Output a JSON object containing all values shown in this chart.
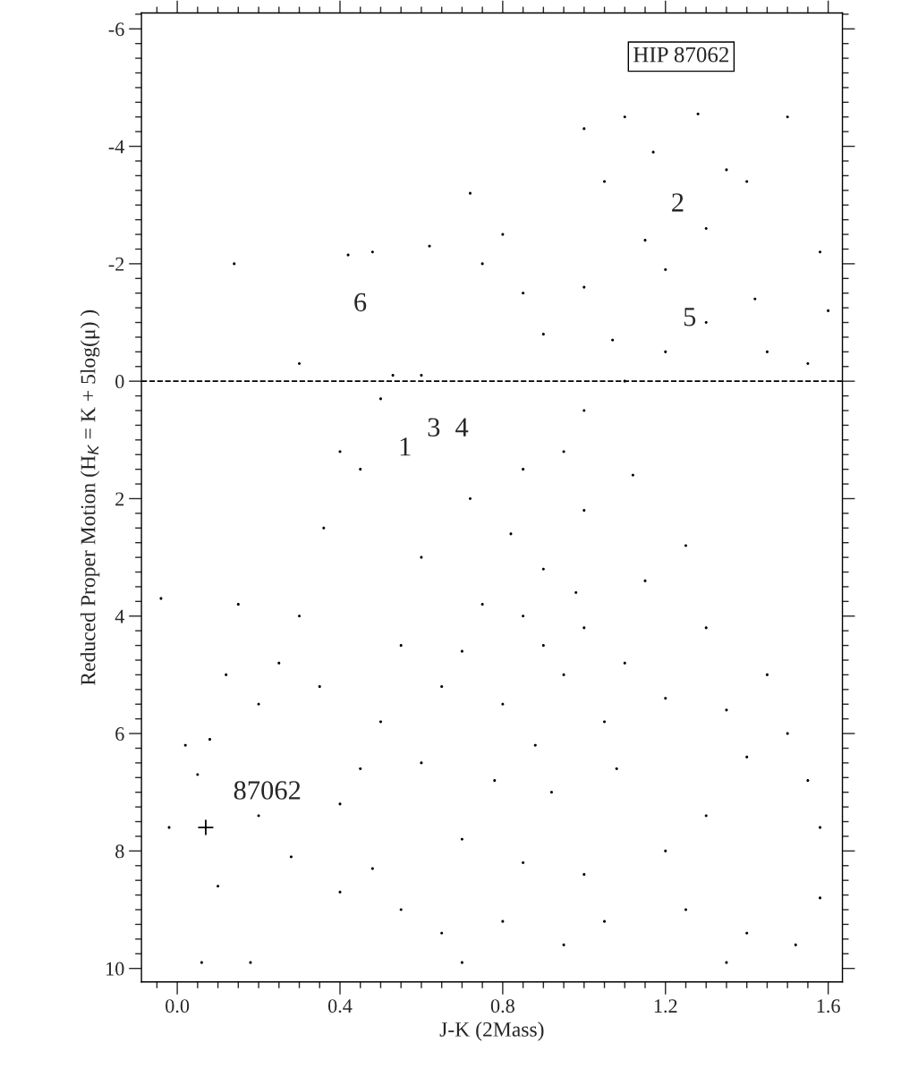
{
  "chart_data": {
    "type": "scatter",
    "xlabel": "J-K (2Mass)",
    "ylabel": "Reduced Proper Motion (H$_{K}$ = K + 5log(μ) )",
    "xlim": [
      -0.088,
      1.635
    ],
    "ylim": [
      10.23,
      -6.27
    ],
    "xticks": [
      {
        "value": 0,
        "label": "0.0"
      },
      0.4,
      0.8,
      1.2,
      1.6
    ],
    "yticks": [
      -6,
      -4,
      -2,
      0,
      2,
      4,
      6,
      8,
      10
    ],
    "grid": false,
    "legend": false,
    "ref_lines": [
      {
        "axis": "y",
        "value": 0,
        "color": "#000000",
        "line_style": "dashed"
      }
    ],
    "annotations": [
      "HIP 87062",
      "2",
      "5",
      "6",
      "1",
      "3",
      "4",
      {
        "text": "87062",
        "x": 0.07,
        "y": 7.6
      }
    ],
    "series": [
      {
        "marker": "circle",
        "color": "#000000",
        "x": [
          0.9,
          0.85,
          0.95,
          1.0,
          0.8,
          0.9,
          1.05,
          0.75,
          0.88,
          1.1,
          0.7,
          0.98,
          0.82,
          1.15,
          0.65,
          1.2,
          0.92,
          0.78,
          1.08,
          0.6,
          0.72,
          1.0,
          1.12,
          0.95,
          0.85,
          1.25,
          1.3,
          1.35,
          1.4,
          1.45,
          1.5,
          1.55,
          1.58,
          1.3,
          1.2,
          1.0,
          0.85,
          0.7,
          0.6,
          0.55,
          0.5,
          0.45,
          0.4,
          0.35,
          0.3,
          0.25,
          0.2,
          0.15,
          0.12,
          0.08,
          0.05,
          -0.02,
          0.02,
          -0.04,
          0.1,
          0.2,
          0.28,
          0.48,
          0.55,
          0.65,
          0.8,
          0.95,
          1.05,
          1.25,
          1.4,
          1.52,
          1.58,
          0.7,
          0.4,
          0.06,
          0.18,
          1.35,
          1.0,
          1.1,
          1.2,
          1.3,
          1.45,
          1.55,
          1.0,
          1.07,
          0.75,
          0.9,
          0.6,
          0.5,
          0.4,
          0.36,
          0.45,
          1.15,
          1.2,
          1.3,
          1.4,
          1.5,
          1.58,
          1.28,
          1.1,
          1.0,
          1.05,
          0.72,
          0.62,
          0.48,
          0.14,
          0.42,
          0.3,
          0.53,
          1.6,
          1.35,
          1.17,
          0.85,
          0.8,
          1.42
        ],
        "values": [
          4.5,
          4.0,
          5.0,
          4.2,
          5.5,
          3.2,
          5.8,
          3.8,
          6.2,
          4.8,
          4.6,
          3.6,
          2.6,
          3.4,
          5.2,
          5.4,
          7.0,
          6.8,
          6.6,
          3.0,
          2.0,
          2.2,
          1.6,
          1.2,
          1.5,
          2.8,
          4.2,
          5.6,
          6.4,
          5.0,
          6.0,
          6.8,
          7.6,
          7.4,
          8.0,
          8.4,
          8.2,
          7.8,
          6.5,
          4.5,
          5.8,
          6.6,
          7.2,
          5.2,
          4.0,
          4.8,
          5.5,
          3.8,
          5.0,
          6.1,
          6.7,
          7.6,
          6.2,
          3.7,
          8.6,
          7.4,
          8.1,
          8.3,
          9.0,
          9.4,
          9.2,
          9.6,
          9.2,
          9.0,
          9.4,
          9.6,
          8.8,
          9.9,
          8.7,
          9.9,
          9.9,
          9.9,
          0.5,
          0.0,
          -0.5,
          -1.0,
          -0.5,
          -0.3,
          -1.6,
          -0.7,
          -2.0,
          -0.8,
          -0.1,
          0.3,
          1.2,
          2.5,
          1.5,
          -2.4,
          -1.9,
          -2.6,
          -3.4,
          -4.5,
          -2.2,
          -4.55,
          -4.5,
          -4.3,
          -3.4,
          -3.2,
          -2.3,
          -2.2,
          -2.0,
          -2.15,
          -0.3,
          -0.1,
          -1.2,
          -3.6,
          -3.9,
          -1.5,
          -2.5,
          -1.4
        ]
      },
      {
        "marker": "cross",
        "color": "#000000",
        "x": [
          0.07
        ],
        "values": [
          7.6
        ]
      }
    ]
  }
}
